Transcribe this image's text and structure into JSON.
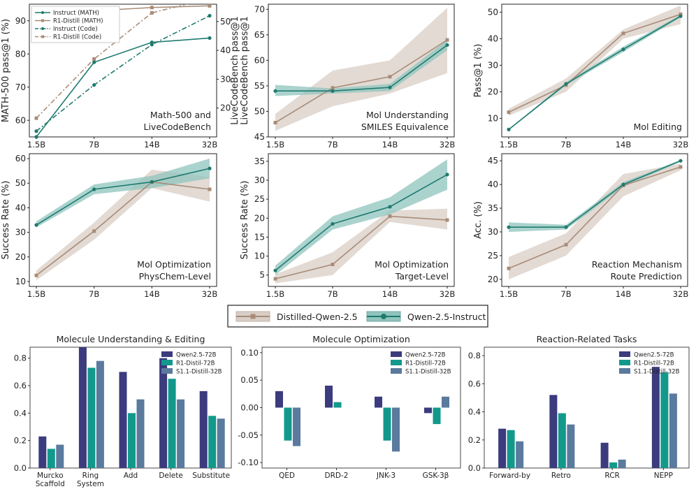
{
  "colors": {
    "teal": "#1f7a6e",
    "teal_band": "#8fc4bd",
    "brown": "#a88c78",
    "brown_band": "#d9cec6",
    "navy": "#3b3b7e",
    "mint": "#12998b",
    "slate": "#5a7a9e"
  },
  "legend": {
    "distilled_label": "Distilled-Qwen-2.5",
    "instruct_label": "Qwen-2.5-Instruct"
  },
  "chart_data": [
    {
      "id": "math_code",
      "type": "line",
      "categories": [
        "1.5B",
        "7B",
        "14B",
        "32B"
      ],
      "ylabel": "MATH-500 pass@1 (%)",
      "ylabel_right": "LiveCodeBench pass@1",
      "ylim": [
        55,
        95
      ],
      "yticks": [
        60,
        70,
        80,
        90
      ],
      "ylim_right": [
        10,
        56
      ],
      "yticks_right": [
        20,
        30,
        40,
        50
      ],
      "annotation": [
        "Math-500 and",
        "LiveCodeBench"
      ],
      "legend": [
        "Instruct (MATH)",
        "R1-Distill (MATH)",
        "Instruct (Code)",
        "R1-Distill (Code)"
      ],
      "series": [
        {
          "name": "Instruct (MATH)",
          "axis": "left",
          "style": "solid",
          "color": "teal",
          "values": [
            55,
            77.5,
            83.5,
            84.8
          ]
        },
        {
          "name": "R1-Distill (MATH)",
          "axis": "left",
          "style": "solid",
          "color": "brown",
          "values": [
            84,
            93,
            94,
            94.5
          ]
        },
        {
          "name": "Instruct (Code)",
          "axis": "right",
          "style": "dashdot",
          "color": "teal",
          "values": [
            12,
            28,
            42,
            52
          ]
        },
        {
          "name": "R1-Distill (Code)",
          "axis": "right",
          "style": "dashdot",
          "color": "brown",
          "values": [
            16.5,
            37,
            53,
            58
          ]
        }
      ]
    },
    {
      "id": "mol_understanding",
      "type": "line",
      "categories": [
        "1.5B",
        "7B",
        "14B",
        "32B"
      ],
      "ylabel": "LiveCodeBench pass@1",
      "ylim": [
        45,
        71
      ],
      "yticks": [
        45,
        50,
        55,
        60,
        65,
        70
      ],
      "annotation": [
        "Mol Understanding",
        "SMILES Equivalence"
      ],
      "series": [
        {
          "name": "Distilled-Qwen-2.5",
          "color": "brown",
          "values": [
            47.8,
            54.6,
            56.8,
            64
          ],
          "lower": [
            46.2,
            51,
            53.5,
            57.5
          ],
          "upper": [
            49.5,
            58,
            60,
            70.3
          ]
        },
        {
          "name": "Qwen-2.5-Instruct",
          "color": "teal",
          "values": [
            54,
            54,
            54.7,
            63
          ],
          "lower": [
            53,
            53.5,
            54,
            62
          ],
          "upper": [
            55.2,
            54.5,
            55.4,
            64
          ]
        }
      ]
    },
    {
      "id": "mol_editing",
      "type": "line",
      "categories": [
        "1.5B",
        "7B",
        "14B",
        "32B"
      ],
      "ylabel": "Pass@1 (%)",
      "ylim": [
        3,
        53
      ],
      "yticks": [
        10,
        20,
        30,
        40,
        50
      ],
      "annotation": [
        "Mol Editing"
      ],
      "series": [
        {
          "name": "Distilled-Qwen-2.5",
          "color": "brown",
          "values": [
            12.3,
            22.5,
            42,
            49.2
          ],
          "lower": [
            11,
            20,
            40,
            45.5
          ],
          "upper": [
            13.6,
            25,
            43.5,
            52.5
          ]
        },
        {
          "name": "Qwen-2.5-Instruct",
          "color": "teal",
          "values": [
            5.8,
            23,
            36,
            48.5
          ],
          "lower": [
            5.6,
            22.4,
            35,
            48
          ],
          "upper": [
            6,
            23.6,
            37,
            49
          ]
        }
      ]
    },
    {
      "id": "mol_opt_physchem",
      "type": "line",
      "categories": [
        "1.5B",
        "7B",
        "14B",
        "32B"
      ],
      "ylabel": "Success Rate (%)",
      "ylim": [
        8,
        62
      ],
      "yticks": [
        10,
        20,
        30,
        40,
        50,
        60
      ],
      "annotation": [
        "Mol Optimization",
        "PhysChem-Level"
      ],
      "series": [
        {
          "name": "Distilled-Qwen-2.5",
          "color": "brown",
          "values": [
            12.5,
            30.5,
            50.5,
            47.5
          ],
          "lower": [
            10.5,
            27,
            48,
            42.5
          ],
          "upper": [
            14.5,
            34,
            55.5,
            52.5
          ]
        },
        {
          "name": "Qwen-2.5-Instruct",
          "color": "teal",
          "values": [
            33,
            47.5,
            50.5,
            56
          ],
          "lower": [
            32,
            45.5,
            48,
            52
          ],
          "upper": [
            34.5,
            49.5,
            53,
            60
          ]
        }
      ]
    },
    {
      "id": "mol_opt_target",
      "type": "line",
      "categories": [
        "1.5B",
        "7B",
        "14B",
        "32B"
      ],
      "ylabel": "Success Rate (%)",
      "ylim": [
        2,
        37
      ],
      "yticks": [
        5,
        10,
        15,
        20,
        25,
        30,
        35
      ],
      "annotation": [
        "Mol Optimization",
        "Target-Level"
      ],
      "series": [
        {
          "name": "Distilled-Qwen-2.5",
          "color": "brown",
          "values": [
            4,
            7.8,
            20.5,
            19.5
          ],
          "lower": [
            2.8,
            5,
            19,
            17
          ],
          "upper": [
            5.2,
            11,
            22,
            22.5
          ]
        },
        {
          "name": "Qwen-2.5-Instruct",
          "color": "teal",
          "values": [
            6.2,
            18.5,
            23,
            31.5
          ],
          "lower": [
            5,
            17,
            21,
            27.5
          ],
          "upper": [
            7.5,
            20.5,
            25.5,
            35.5
          ]
        }
      ]
    },
    {
      "id": "reaction_mechanism",
      "type": "line",
      "categories": [
        "1.5B",
        "7B",
        "14B",
        "32B"
      ],
      "ylabel": "Acc. (%)",
      "ylim": [
        18.5,
        46.5
      ],
      "yticks": [
        20,
        25,
        30,
        35,
        40,
        45
      ],
      "annotation": [
        "Reaction Mechanism",
        "Route Prediction"
      ],
      "series": [
        {
          "name": "Distilled-Qwen-2.5",
          "color": "brown",
          "values": [
            22.3,
            27.3,
            39.8,
            43.7
          ],
          "lower": [
            20,
            25,
            37.5,
            43
          ],
          "upper": [
            24.7,
            29.7,
            42.2,
            44.4
          ]
        },
        {
          "name": "Qwen-2.5-Instruct",
          "color": "teal",
          "values": [
            31,
            31,
            40,
            45
          ],
          "lower": [
            30,
            30.5,
            39.5,
            44.8
          ],
          "upper": [
            32,
            31.5,
            40.5,
            45.2
          ]
        }
      ]
    },
    {
      "id": "bar_understanding",
      "type": "bar",
      "title": "Molecule Understanding & Editing",
      "categories": [
        [
          "Murcko",
          "Scaffold"
        ],
        [
          "Ring",
          "System"
        ],
        [
          "Add"
        ],
        [
          "Delete"
        ],
        [
          "Substitute"
        ]
      ],
      "ylim": [
        0,
        0.88
      ],
      "yticks": [
        "0.0",
        "0.2",
        "0.4",
        "0.6",
        "0.8"
      ],
      "series": [
        {
          "name": "Qwen2.5-72B",
          "color": "navy",
          "values": [
            0.23,
            0.88,
            0.7,
            0.8,
            0.56
          ]
        },
        {
          "name": "R1-Distil-72B",
          "color": "mint",
          "values": [
            0.14,
            0.73,
            0.4,
            0.65,
            0.38
          ]
        },
        {
          "name": "S1.1-Distill-32B",
          "color": "slate",
          "values": [
            0.17,
            0.78,
            0.5,
            0.5,
            0.36
          ]
        }
      ]
    },
    {
      "id": "bar_optimization",
      "type": "bar",
      "title": "Molecule Optimization",
      "categories": [
        [
          "QED"
        ],
        [
          "DRD-2"
        ],
        [
          "JNK-3"
        ],
        [
          "GSK-3β"
        ]
      ],
      "ylim": [
        -0.11,
        0.11
      ],
      "yticks": [
        "-0.10",
        "-0.05",
        "0.00",
        "0.05",
        "0.10"
      ],
      "series": [
        {
          "name": "Qwen2.5-72B",
          "color": "navy",
          "values": [
            0.03,
            0.04,
            0.02,
            -0.01
          ]
        },
        {
          "name": "R1-Distill-72B",
          "color": "mint",
          "values": [
            -0.06,
            0.01,
            -0.06,
            -0.03
          ]
        },
        {
          "name": "S1.1-Distill-32B",
          "color": "slate",
          "values": [
            -0.07,
            0.0,
            -0.08,
            0.02
          ]
        }
      ]
    },
    {
      "id": "bar_reaction",
      "type": "bar",
      "title": "Reaction-Related Tasks",
      "categories": [
        [
          "Forward-by"
        ],
        [
          "Retro"
        ],
        [
          "RCR"
        ],
        [
          "NEPP"
        ]
      ],
      "ylim": [
        0,
        0.86
      ],
      "yticks": [
        "0.0",
        "0.2",
        "0.4",
        "0.6",
        "0.8"
      ],
      "series": [
        {
          "name": "Qwen2.5-72B",
          "color": "navy",
          "values": [
            0.28,
            0.52,
            0.18,
            0.72
          ]
        },
        {
          "name": "R1-Distill-72B",
          "color": "mint",
          "values": [
            0.27,
            0.39,
            0.04,
            0.68
          ]
        },
        {
          "name": "S1.1-Distill-32B",
          "color": "slate",
          "values": [
            0.19,
            0.31,
            0.06,
            0.53
          ]
        }
      ]
    }
  ]
}
